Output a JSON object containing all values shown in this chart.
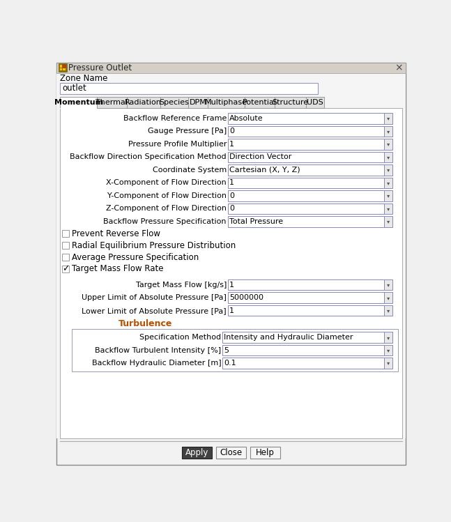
{
  "title": "Pressure Outlet",
  "zone_name_label": "Zone Name",
  "zone_name_value": "outlet",
  "tabs": [
    "Momentum",
    "Thermal",
    "Radiation",
    "Species",
    "DPM",
    "Multiphase",
    "Potential",
    "Structure",
    "UDS"
  ],
  "active_tab": "Momentum",
  "fields": [
    {
      "label": "Backflow Reference Frame",
      "value": "Absolute"
    },
    {
      "label": "Gauge Pressure [Pa]",
      "value": "0"
    },
    {
      "label": "Pressure Profile Multiplier",
      "value": "1"
    },
    {
      "label": "Backflow Direction Specification Method",
      "value": "Direction Vector"
    },
    {
      "label": "Coordinate System",
      "value": "Cartesian (X, Y, Z)"
    },
    {
      "label": "X-Component of Flow Direction",
      "value": "1"
    },
    {
      "label": "Y-Component of Flow Direction",
      "value": "0"
    },
    {
      "label": "Z-Component of Flow Direction",
      "value": "0"
    },
    {
      "label": "Backflow Pressure Specification",
      "value": "Total Pressure"
    }
  ],
  "checkboxes": [
    {
      "label": "Prevent Reverse Flow",
      "checked": false
    },
    {
      "label": "Radial Equilibrium Pressure Distribution",
      "checked": false
    },
    {
      "label": "Average Pressure Specification",
      "checked": false
    },
    {
      "label": "Target Mass Flow Rate",
      "checked": true
    }
  ],
  "target_fields": [
    {
      "label": "Target Mass Flow [kg/s]",
      "value": "1"
    },
    {
      "label": "Upper Limit of Absolute Pressure [Pa]",
      "value": "5000000"
    },
    {
      "label": "Lower Limit of Absolute Pressure [Pa]",
      "value": "1"
    }
  ],
  "turbulence_label": "Turbulence",
  "turbulence_fields": [
    {
      "label": "Specification Method",
      "value": "Intensity and Hydraulic Diameter"
    },
    {
      "label": "Backflow Turbulent Intensity [%]",
      "value": "5"
    },
    {
      "label": "Backflow Hydraulic Diameter [m]",
      "value": "0.1"
    }
  ],
  "buttons": [
    {
      "label": "Apply",
      "dark": true
    },
    {
      "label": "Close",
      "dark": false
    },
    {
      "label": "Help",
      "dark": false
    }
  ],
  "bg_color": "#f0f0f0",
  "content_bg": "#ffffff",
  "titlebar_bg": "#d8d8d8",
  "field_border": "#aaaacc",
  "tab_active_bg": "#ffffff",
  "tab_inactive_bg": "#e0e0e0",
  "turbulence_color": "#b85000",
  "button_dark_bg": "#404040",
  "button_dark_fg": "#ffffff",
  "button_light_bg": "#f5f5f5",
  "button_light_fg": "#000000",
  "button_border": "#888888"
}
